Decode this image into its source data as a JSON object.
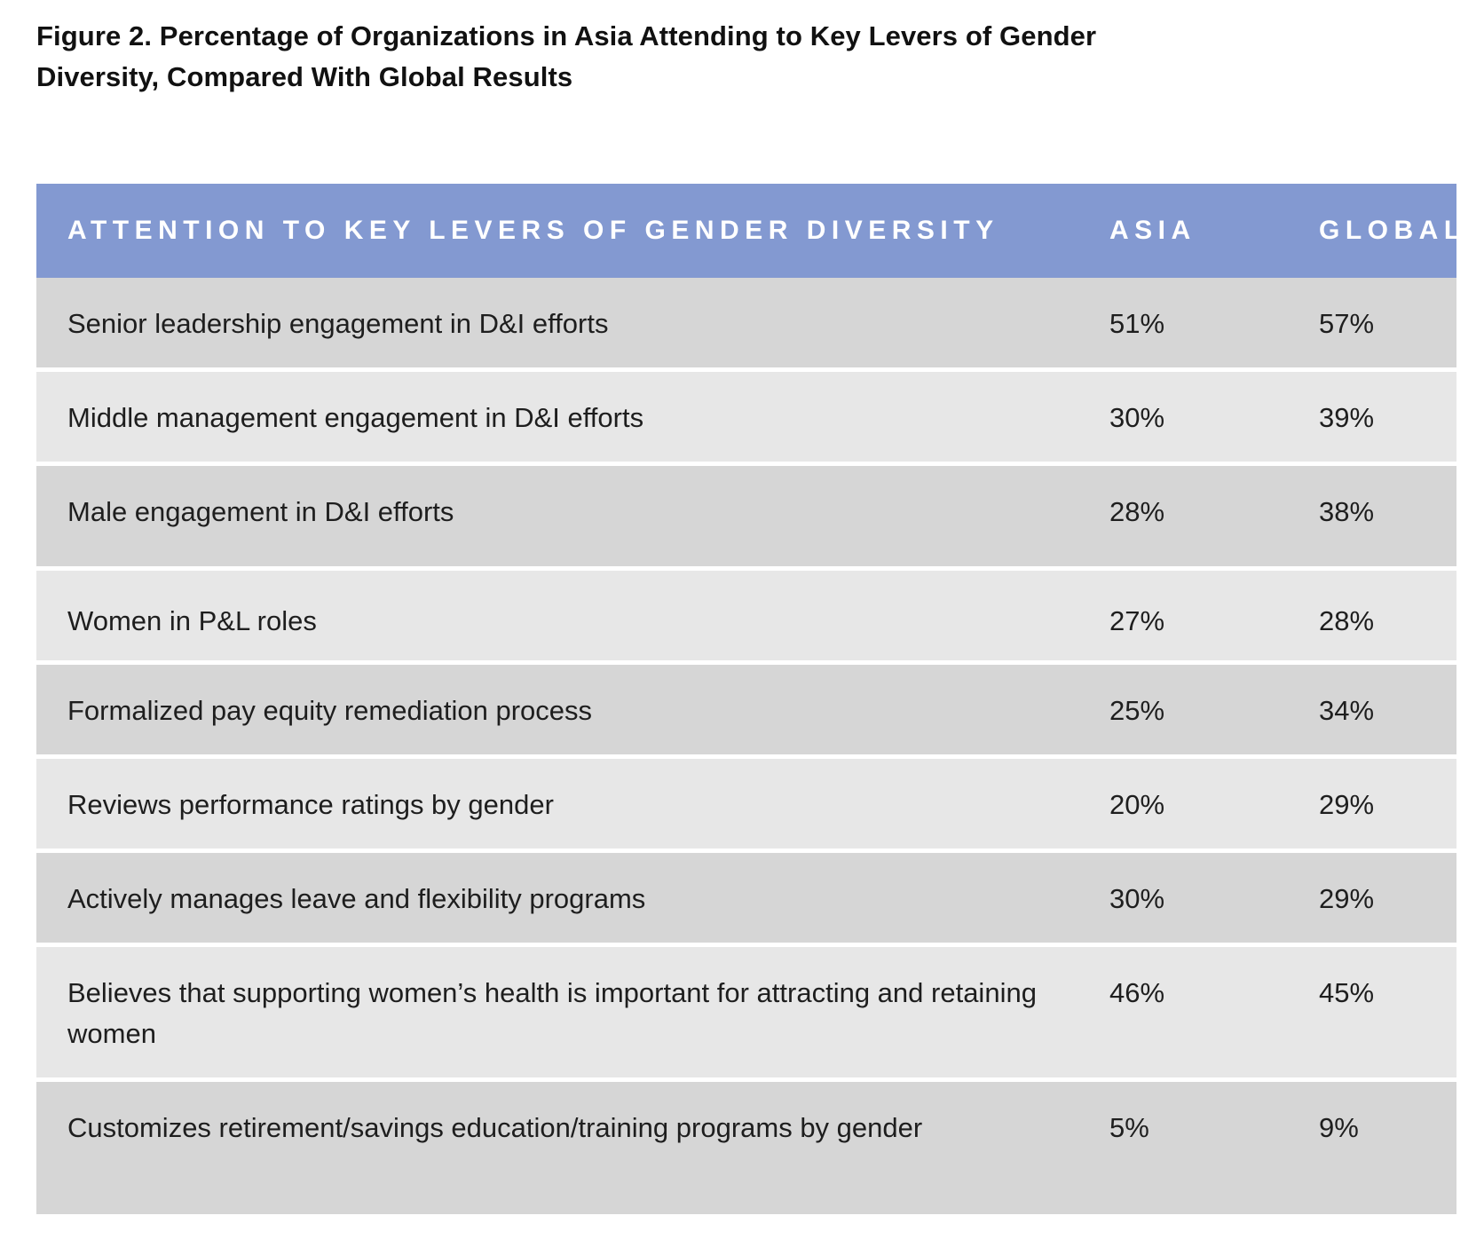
{
  "figure": {
    "title": "Figure 2. Percentage of Organizations in Asia Attending to Key Levers of Gender Diversity, Compared With Global Results"
  },
  "colors": {
    "header_background": "#8399d1",
    "header_text": "#ffffff",
    "row_dark": "#d6d6d6",
    "row_light": "#e7e7e7"
  },
  "table": {
    "headers": {
      "lever": "ATTENTION TO KEY LEVERS OF GENDER DIVERSITY",
      "asia": "ASIA",
      "global": "GLOBAL"
    },
    "rows": [
      {
        "lever": "Senior leadership engagement in D&I efforts",
        "asia": "51%",
        "global": "57%"
      },
      {
        "lever": "Middle management engagement in D&I efforts",
        "asia": "30%",
        "global": "39%"
      },
      {
        "lever": "Male engagement in D&I efforts",
        "asia": "28%",
        "global": "38%"
      },
      {
        "lever": "Women in P&L roles",
        "asia": "27%",
        "global": "28%"
      },
      {
        "lever": "Formalized pay equity remediation process",
        "asia": "25%",
        "global": "34%"
      },
      {
        "lever": "Reviews performance ratings by gender",
        "asia": "20%",
        "global": "29%"
      },
      {
        "lever": "Actively manages leave and flexibility programs",
        "asia": "30%",
        "global": "29%"
      },
      {
        "lever": "Believes that supporting women’s health is important for attracting and retaining women",
        "asia": "46%",
        "global": "45%"
      },
      {
        "lever": "Customizes retirement/savings education/training programs by gender",
        "asia": "5%",
        "global": "9%"
      }
    ]
  }
}
